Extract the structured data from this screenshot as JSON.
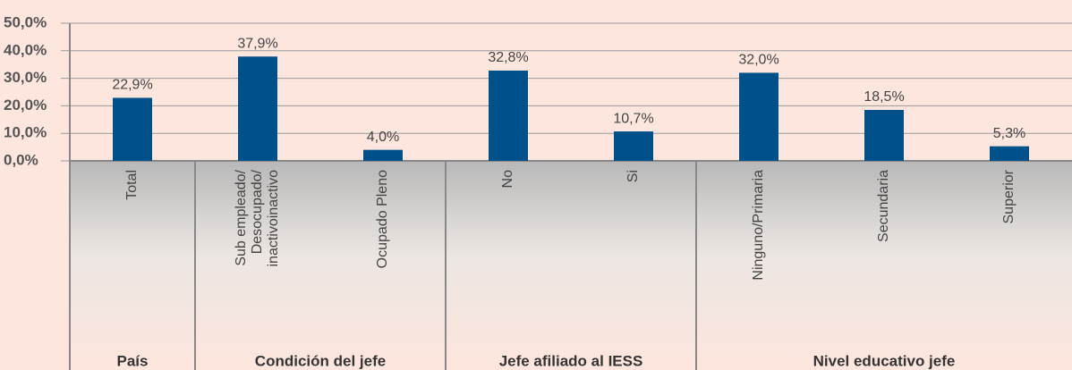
{
  "chart_data": {
    "type": "bar",
    "categories": [
      "Total",
      "Sub empleado/\nDesocupado/\ninactivoinactivo",
      "Ocupado Pleno",
      "No",
      "Si",
      "Ninguno/Primaria",
      "Secundaria",
      "Superior"
    ],
    "values": [
      22.9,
      37.9,
      4.0,
      32.8,
      10.7,
      32.0,
      18.5,
      5.3
    ],
    "value_labels": [
      "22,9%",
      "37,9%",
      "4,0%",
      "32,8%",
      "10,7%",
      "32,0%",
      "18,5%",
      "5,3%"
    ],
    "color": "#00508a",
    "groups": [
      {
        "label": "País",
        "size": 1
      },
      {
        "label": "Condición del jefe",
        "size": 2
      },
      {
        "label": "Jefe afiliado al IESS",
        "size": 2
      },
      {
        "label": "Nivel educativo jefe",
        "size": 3
      }
    ],
    "ylim": [
      0,
      50
    ],
    "yticks": [
      {
        "value": 0,
        "label": "0,0%"
      },
      {
        "value": 10,
        "label": "10,0%"
      },
      {
        "value": 20,
        "label": "20,0%"
      },
      {
        "value": 30,
        "label": "30,0%"
      },
      {
        "value": 40,
        "label": "40,0%"
      },
      {
        "value": 50,
        "label": "50,0%"
      }
    ],
    "grid": true
  }
}
